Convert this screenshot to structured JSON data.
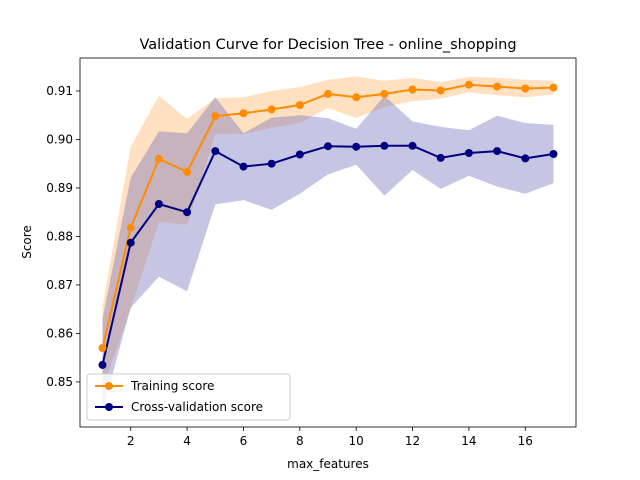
{
  "chart_data": {
    "type": "line",
    "title": "Validation Curve for Decision Tree - online_shopping",
    "xlabel": "max_features",
    "ylabel": "Score",
    "xlim": [
      0.2,
      17.8
    ],
    "ylim": [
      0.8407,
      0.9168
    ],
    "xticks": [
      2,
      4,
      6,
      8,
      10,
      12,
      14,
      16
    ],
    "yticks": [
      0.85,
      0.86,
      0.87,
      0.88,
      0.89,
      0.9,
      0.91
    ],
    "ytick_labels": [
      "0.85",
      "0.86",
      "0.87",
      "0.88",
      "0.89",
      "0.90",
      "0.91"
    ],
    "grid": false,
    "legend_position": "lower-left",
    "x": [
      1,
      2,
      3,
      4,
      5,
      6,
      7,
      8,
      9,
      10,
      11,
      12,
      13,
      14,
      15,
      16,
      17
    ],
    "series": [
      {
        "name": "Training score",
        "color": "#ff8c00",
        "values": [
          0.857,
          0.8818,
          0.896,
          0.8933,
          0.9048,
          0.9054,
          0.9062,
          0.9071,
          0.9094,
          0.9087,
          0.9094,
          0.9103,
          0.9101,
          0.9113,
          0.9109,
          0.9105,
          0.9107
        ],
        "band_upper": [
          0.8655,
          0.8985,
          0.909,
          0.9042,
          0.9085,
          0.9087,
          0.91,
          0.9108,
          0.9123,
          0.913,
          0.9121,
          0.9127,
          0.9118,
          0.9129,
          0.9127,
          0.9123,
          0.9121
        ],
        "band_lower": [
          0.8487,
          0.8651,
          0.883,
          0.8824,
          0.9011,
          0.9011,
          0.9024,
          0.9034,
          0.9065,
          0.9044,
          0.9067,
          0.9079,
          0.9084,
          0.9097,
          0.9091,
          0.9087,
          0.9093
        ]
      },
      {
        "name": "Cross-validation score",
        "color": "#000080",
        "values": [
          0.8535,
          0.8787,
          0.8867,
          0.885,
          0.8976,
          0.8944,
          0.895,
          0.8969,
          0.8986,
          0.8985,
          0.8987,
          0.8987,
          0.8962,
          0.8972,
          0.8976,
          0.8961,
          0.897
        ],
        "band_upper": [
          0.863,
          0.8921,
          0.9017,
          0.9013,
          0.9087,
          0.9013,
          0.9045,
          0.905,
          0.9044,
          0.9022,
          0.909,
          0.9037,
          0.9026,
          0.9019,
          0.9049,
          0.9034,
          0.903
        ],
        "band_lower": [
          0.844,
          0.8653,
          0.8717,
          0.8687,
          0.8866,
          0.8875,
          0.8855,
          0.8888,
          0.8928,
          0.8948,
          0.8884,
          0.8937,
          0.8898,
          0.8925,
          0.8903,
          0.8888,
          0.891
        ]
      }
    ]
  }
}
